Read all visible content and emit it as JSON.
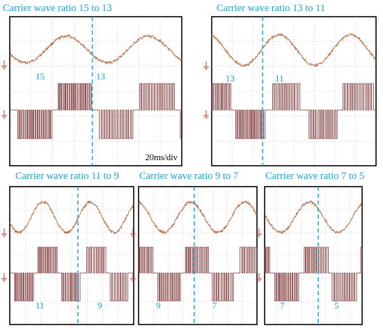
{
  "chart_data": [
    {
      "type": "line",
      "title": "Carrier wave ratio 15 to 13",
      "series": [
        {
          "kind": "sine",
          "periods_visible": 2.1,
          "phase_deg": 200
        },
        {
          "kind": "pwm",
          "pulse_ratios": [
            "15",
            "13"
          ]
        }
      ],
      "before_ratio": "15",
      "after_ratio": "13",
      "scale_label": "20ms/div",
      "grid": true
    },
    {
      "type": "line",
      "title": "Carrier wave ratio 13 to 11",
      "series": [
        {
          "kind": "sine",
          "periods_visible": 2.3,
          "phase_deg": 110
        },
        {
          "kind": "pwm",
          "pulse_ratios": [
            "13",
            "11"
          ]
        }
      ],
      "before_ratio": "13",
      "after_ratio": "11",
      "scale_label": "",
      "grid": true
    },
    {
      "type": "line",
      "title": "Carrier wave ratio 11 to 9",
      "series": [
        {
          "kind": "sine",
          "periods_visible": 2.6,
          "phase_deg": 200
        },
        {
          "kind": "pwm",
          "pulse_ratios": [
            "11",
            "9"
          ]
        }
      ],
      "before_ratio": "11",
      "after_ratio": "9",
      "scale_label": "",
      "grid": true
    },
    {
      "type": "line",
      "title": "Carrier wave ratio 9 to 7",
      "series": [
        {
          "kind": "sine",
          "periods_visible": 2.2,
          "phase_deg": 100
        },
        {
          "kind": "pwm",
          "pulse_ratios": [
            "9",
            "7"
          ]
        }
      ],
      "before_ratio": "9",
      "after_ratio": "7",
      "scale_label": "",
      "grid": true
    },
    {
      "type": "line",
      "title": "Carrier wave ratio 7 to 5",
      "series": [
        {
          "kind": "sine",
          "periods_visible": 1.7,
          "phase_deg": 170
        },
        {
          "kind": "pwm",
          "pulse_ratios": [
            "7",
            "5"
          ]
        }
      ],
      "before_ratio": "7",
      "after_ratio": "5",
      "scale_label": "",
      "grid": true
    }
  ],
  "colors": {
    "sine": "#b5653a",
    "pwm": "#7a2e2e",
    "marker": "#1aa3d9",
    "frame": "#000000",
    "grid": "#9a9a9a",
    "ground": "#c0392b"
  }
}
